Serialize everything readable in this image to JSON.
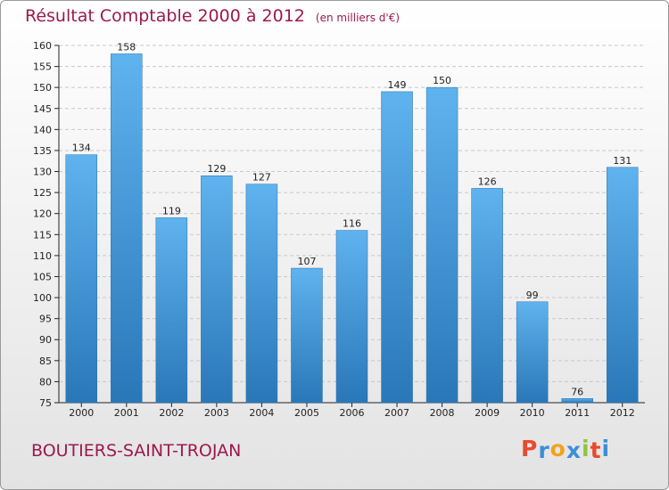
{
  "title": "Résultat Comptable 2000 à 2012",
  "subtitle": "(en milliers d'€)",
  "commune": "BOUTIERS-SAINT-TROJAN",
  "logo": {
    "letters": [
      "P",
      "r",
      "o",
      "x",
      "i",
      "t",
      "i"
    ],
    "colors": [
      "#e84a2e",
      "#3a8fd8",
      "#f4a21b",
      "#3a8fd8",
      "#8cc63f",
      "#e84a2e",
      "#3a8fd8"
    ]
  },
  "colors": {
    "title": "#9b1a4b",
    "bar": "#3d8fd6",
    "axis": "#222222"
  },
  "chart_data": {
    "type": "bar",
    "categories": [
      "2000",
      "2001",
      "2002",
      "2003",
      "2004",
      "2005",
      "2006",
      "2007",
      "2008",
      "2009",
      "2010",
      "2011",
      "2012"
    ],
    "values": [
      134,
      158,
      119,
      129,
      127,
      107,
      116,
      149,
      150,
      126,
      99,
      76,
      131
    ],
    "ylim": [
      75,
      160
    ],
    "yticks": [
      75,
      80,
      85,
      90,
      95,
      100,
      105,
      110,
      115,
      120,
      125,
      130,
      135,
      140,
      145,
      150,
      155,
      160
    ],
    "grid": true,
    "legend": "none"
  }
}
